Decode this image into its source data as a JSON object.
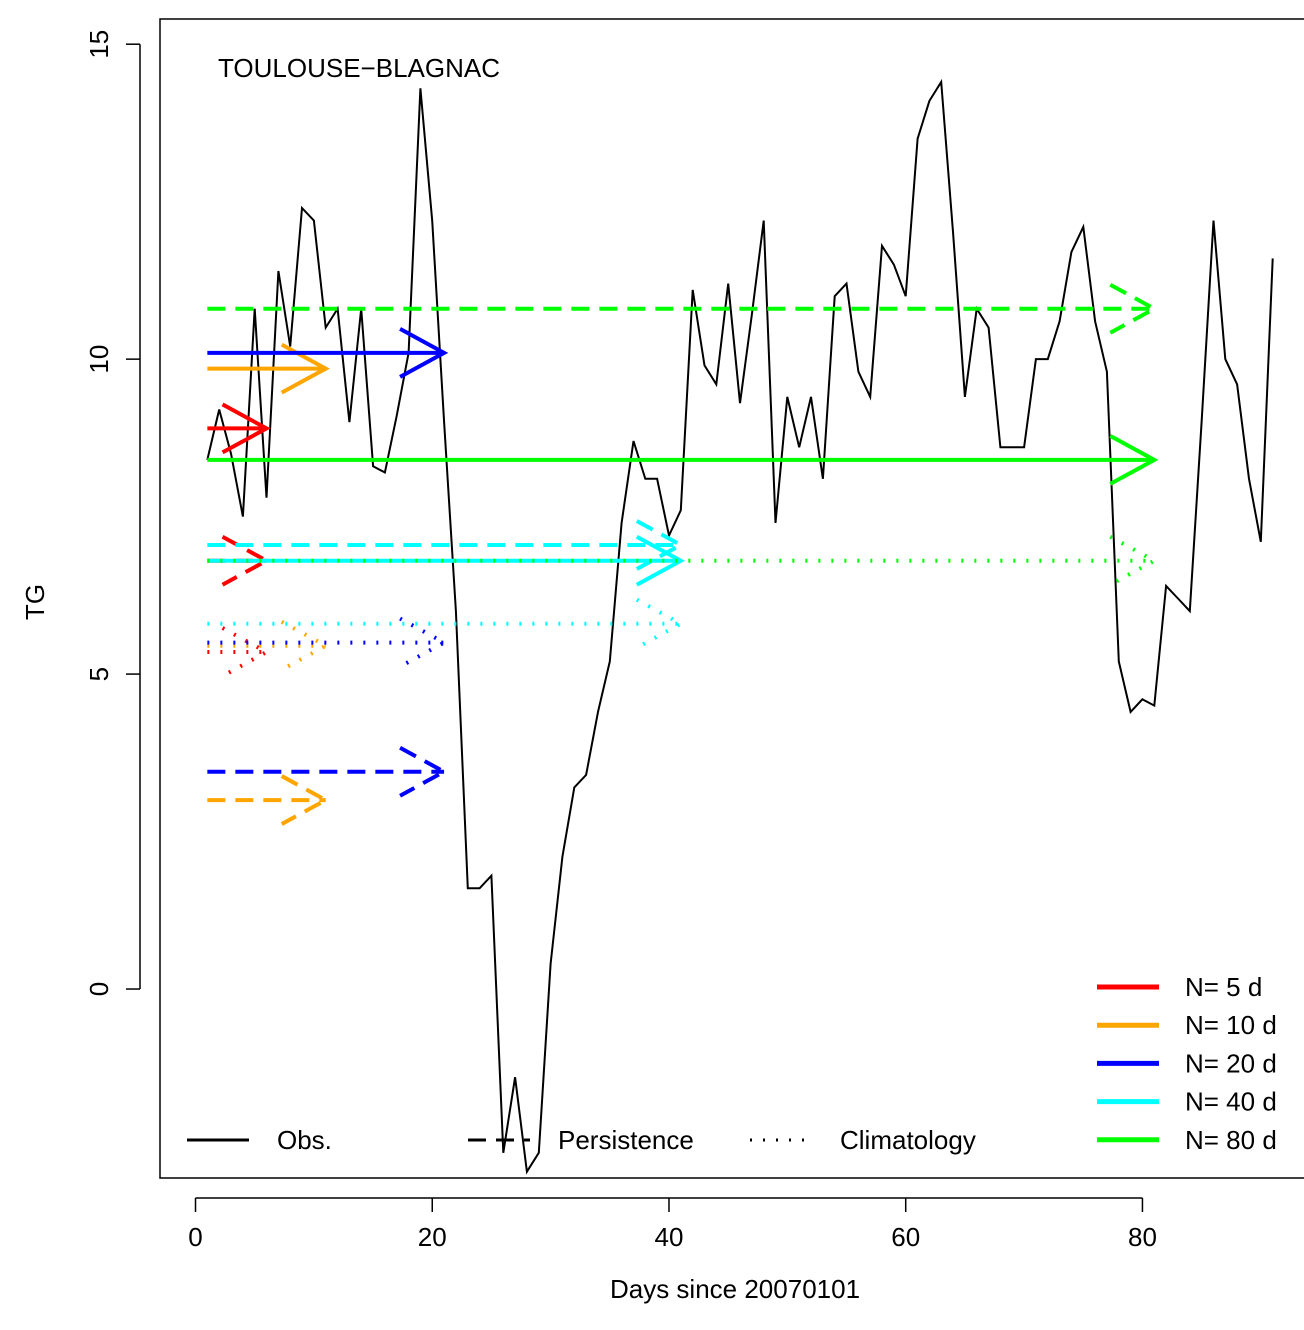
{
  "chart_data": {
    "type": "line",
    "title": "TOULOUSE−BLAGNAC",
    "xlabel": "Days since 20070101",
    "ylabel": "TG",
    "xlim": [
      -3,
      95
    ],
    "ylim": [
      -3.0,
      15.4
    ],
    "x_ticks": [
      0,
      20,
      40,
      60,
      80
    ],
    "y_ticks": [
      0,
      5,
      10,
      15
    ],
    "grid": false,
    "legend_methods": {
      "placement": "bottom-left",
      "entries": [
        {
          "label": "Obs.",
          "style": "solid"
        },
        {
          "label": "Persistence",
          "style": "dashed"
        },
        {
          "label": "Climatology",
          "style": "dotted"
        }
      ]
    },
    "legend_windows": {
      "placement": "bottom-right",
      "entries": [
        {
          "label": "N= 5 d",
          "color": "#ff0000"
        },
        {
          "label": "N= 10 d",
          "color": "#ffa500"
        },
        {
          "label": "N= 20 d",
          "color": "#0000ff"
        },
        {
          "label": "N= 40 d",
          "color": "#00ffff"
        },
        {
          "label": "N= 80 d",
          "color": "#00ff00"
        }
      ]
    },
    "observations": {
      "name": "Obs.",
      "color": "#000000",
      "x": [
        1,
        2,
        3,
        4,
        5,
        6,
        7,
        8,
        9,
        10,
        11,
        12,
        13,
        14,
        15,
        16,
        17,
        18,
        19,
        20,
        21,
        22,
        23,
        24,
        25,
        26,
        27,
        28,
        29,
        30,
        31,
        32,
        33,
        34,
        35,
        36,
        37,
        38,
        39,
        40,
        41,
        42,
        43,
        44,
        45,
        46,
        47,
        48,
        49,
        50,
        51,
        52,
        53,
        54,
        55,
        56,
        57,
        58,
        59,
        60,
        61,
        62,
        63,
        64,
        65,
        66,
        67,
        68,
        69,
        70,
        71,
        72,
        73,
        74,
        75,
        76,
        77,
        78,
        79,
        80,
        81,
        82,
        83,
        84,
        85,
        86,
        87,
        88,
        89,
        90,
        91
      ],
      "y": [
        8.4,
        9.2,
        8.5,
        7.5,
        10.8,
        7.8,
        11.4,
        10.2,
        12.4,
        12.2,
        10.5,
        10.8,
        9.0,
        10.8,
        8.3,
        8.2,
        9.1,
        10.1,
        14.3,
        12.2,
        9.0,
        6.0,
        1.6,
        1.6,
        1.8,
        -2.6,
        -1.4,
        -2.9,
        -2.6,
        0.4,
        2.1,
        3.2,
        3.4,
        4.4,
        5.2,
        7.4,
        8.7,
        8.1,
        8.1,
        7.2,
        7.6,
        11.1,
        9.9,
        9.6,
        11.2,
        9.3,
        10.7,
        12.2,
        7.4,
        9.4,
        8.6,
        9.4,
        8.1,
        11.0,
        11.2,
        9.8,
        9.4,
        11.8,
        11.5,
        11.0,
        13.5,
        14.1,
        14.4,
        12.0,
        9.4,
        10.8,
        10.5,
        8.6,
        8.6,
        8.6,
        10.0,
        10.0,
        10.6,
        11.7,
        12.1,
        10.6,
        9.8,
        5.2,
        4.4,
        4.6,
        4.5,
        6.4,
        6.2,
        6.0,
        9.0,
        12.2,
        10.0,
        9.6,
        8.1,
        7.1,
        11.6
      ]
    },
    "arrows": [
      {
        "window_days": 5,
        "method": "Obs.",
        "color": "#ff0000",
        "style": "solid",
        "x_start": 1,
        "x_end": 6,
        "y": 8.9
      },
      {
        "window_days": 5,
        "method": "Persistence",
        "color": "#ff0000",
        "style": "dashed",
        "x_start": 1,
        "x_end": 6,
        "y": 6.8
      },
      {
        "window_days": 5,
        "method": "Climatology",
        "color": "#ff0000",
        "style": "dotted",
        "x_start": 1,
        "x_end": 6,
        "y": 5.35
      },
      {
        "window_days": 10,
        "method": "Obs.",
        "color": "#ffa500",
        "style": "solid",
        "x_start": 1,
        "x_end": 11,
        "y": 9.85
      },
      {
        "window_days": 10,
        "method": "Persistence",
        "color": "#ffa500",
        "style": "dashed",
        "x_start": 1,
        "x_end": 11,
        "y": 3.0
      },
      {
        "window_days": 10,
        "method": "Climatology",
        "color": "#ffa500",
        "style": "dotted",
        "x_start": 1,
        "x_end": 11,
        "y": 5.45
      },
      {
        "window_days": 20,
        "method": "Obs.",
        "color": "#0000ff",
        "style": "solid",
        "x_start": 1,
        "x_end": 21,
        "y": 10.1
      },
      {
        "window_days": 20,
        "method": "Persistence",
        "color": "#0000ff",
        "style": "dashed",
        "x_start": 1,
        "x_end": 21,
        "y": 3.45
      },
      {
        "window_days": 20,
        "method": "Climatology",
        "color": "#0000ff",
        "style": "dotted",
        "x_start": 1,
        "x_end": 21,
        "y": 5.5
      },
      {
        "window_days": 40,
        "method": "Obs.",
        "color": "#00ffff",
        "style": "solid",
        "x_start": 1,
        "x_end": 41,
        "y": 6.8
      },
      {
        "window_days": 40,
        "method": "Persistence",
        "color": "#00ffff",
        "style": "dashed",
        "x_start": 1,
        "x_end": 41,
        "y": 7.05
      },
      {
        "window_days": 40,
        "method": "Climatology",
        "color": "#00ffff",
        "style": "dotted",
        "x_start": 1,
        "x_end": 41,
        "y": 5.8
      },
      {
        "window_days": 80,
        "method": "Obs.",
        "color": "#00ff00",
        "style": "solid",
        "x_start": 1,
        "x_end": 81,
        "y": 8.4
      },
      {
        "window_days": 80,
        "method": "Persistence",
        "color": "#00ff00",
        "style": "dashed",
        "x_start": 1,
        "x_end": 81,
        "y": 10.8
      },
      {
        "window_days": 80,
        "method": "Climatology",
        "color": "#00ff00",
        "style": "dotted",
        "x_start": 1,
        "x_end": 81,
        "y": 6.8
      }
    ]
  }
}
